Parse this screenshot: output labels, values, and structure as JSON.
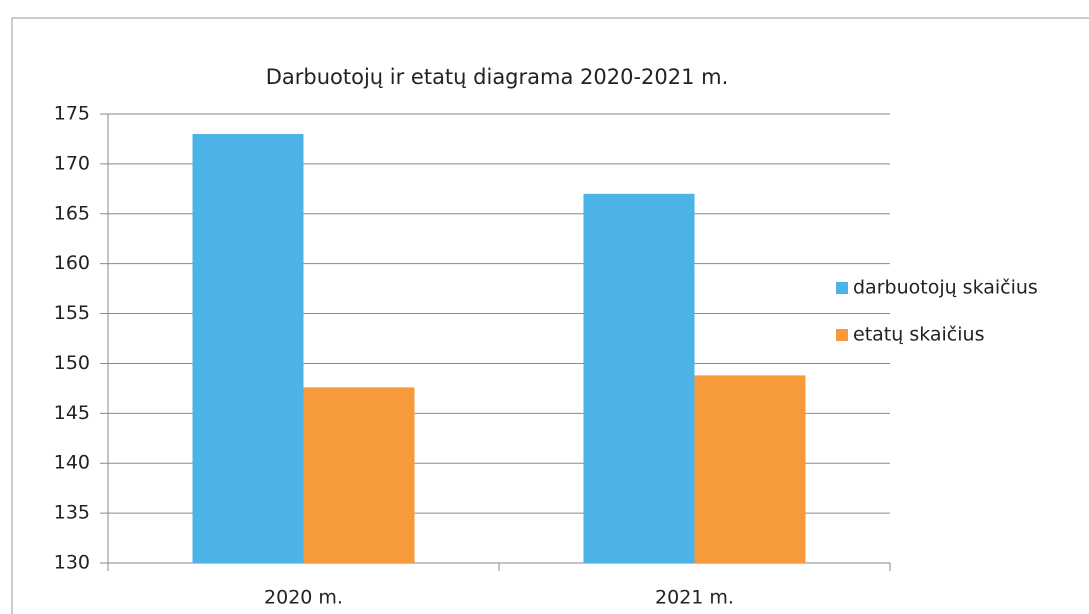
{
  "chart_data": {
    "type": "bar",
    "title": "Darbuotojų ir etatų diagrama 2020-2021 m.",
    "categories": [
      "2020 m.",
      "2021 m."
    ],
    "series": [
      {
        "name": "darbuotojų skaičius",
        "color": "#4bb3e6",
        "values": [
          173,
          167
        ]
      },
      {
        "name": "etatų skaičius",
        "color": "#f79a3c",
        "values": [
          147.6,
          148.8
        ]
      }
    ],
    "ylim": [
      130,
      175
    ],
    "yticks": [
      130,
      135,
      140,
      145,
      150,
      155,
      160,
      165,
      170,
      175
    ],
    "grid": true,
    "legend": "right"
  }
}
